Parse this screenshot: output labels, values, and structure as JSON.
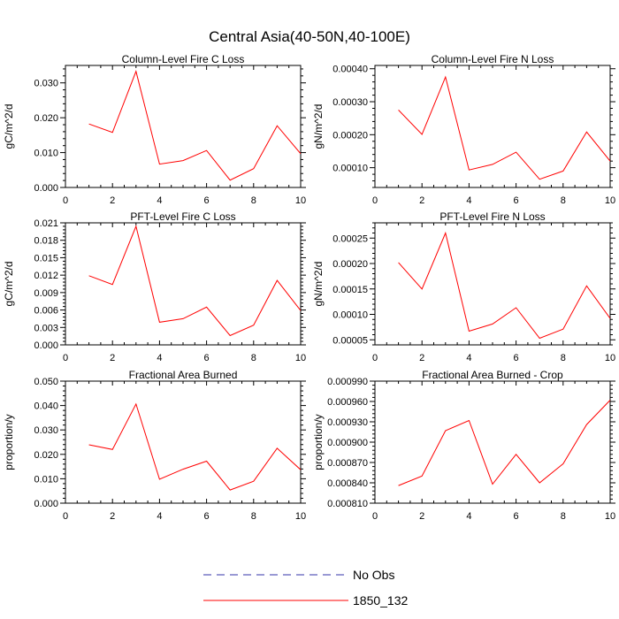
{
  "title": "Central Asia(40-50N,40-100E)",
  "colors": {
    "series": "#ff0000",
    "obs": "#3333aa",
    "frame": "#000000"
  },
  "legend": [
    {
      "label": "No Obs",
      "style": "dashed"
    },
    {
      "label": "1850_132",
      "style": "solid"
    }
  ],
  "chart_data": [
    {
      "type": "line",
      "title": "Column-Level Fire C Loss",
      "ylabel": "gC/m^2/d",
      "xlim": [
        0,
        10
      ],
      "ylim": [
        0.0,
        0.035
      ],
      "xticks": [
        0,
        2,
        4,
        6,
        8,
        10
      ],
      "xtick_labels": [
        "0",
        "2",
        "4",
        "6",
        "8",
        "10"
      ],
      "yticks": [
        0.0,
        0.01,
        0.02,
        0.03
      ],
      "ytick_labels": [
        "0.000",
        "0.010",
        "0.020",
        "0.030"
      ],
      "x": [
        1,
        2,
        3,
        4,
        5,
        6,
        7,
        8,
        9,
        10
      ],
      "series": [
        {
          "name": "1850_132",
          "values": [
            0.0182,
            0.0158,
            0.0333,
            0.0067,
            0.0077,
            0.0106,
            0.0021,
            0.0054,
            0.0177,
            0.0097
          ]
        }
      ]
    },
    {
      "type": "line",
      "title": "Column-Level Fire N Loss",
      "ylabel": "gN/m^2/d",
      "xlim": [
        0,
        10
      ],
      "ylim": [
        4e-05,
        0.00041
      ],
      "xticks": [
        0,
        2,
        4,
        6,
        8,
        10
      ],
      "xtick_labels": [
        "0",
        "2",
        "4",
        "6",
        "8",
        "10"
      ],
      "yticks": [
        0.0001,
        0.0002,
        0.0003,
        0.0004
      ],
      "ytick_labels": [
        "0.00010",
        "0.00020",
        "0.00030",
        "0.00040"
      ],
      "x": [
        1,
        2,
        3,
        4,
        5,
        6,
        7,
        8,
        9,
        10
      ],
      "series": [
        {
          "name": "1850_132",
          "values": [
            0.000275,
            0.000201,
            0.000375,
            9.3e-05,
            0.00011,
            0.000147,
            6.5e-05,
            9e-05,
            0.000208,
            0.00012
          ]
        }
      ]
    },
    {
      "type": "line",
      "title": "PFT-Level Fire C Loss",
      "ylabel": "gC/m^2/d",
      "xlim": [
        0,
        10
      ],
      "ylim": [
        0.0,
        0.021
      ],
      "xticks": [
        0,
        2,
        4,
        6,
        8,
        10
      ],
      "xtick_labels": [
        "0",
        "2",
        "4",
        "6",
        "8",
        "10"
      ],
      "yticks": [
        0.0,
        0.003,
        0.006,
        0.009,
        0.012,
        0.015,
        0.018,
        0.021
      ],
      "ytick_labels": [
        "0.000",
        "0.003",
        "0.006",
        "0.009",
        "0.012",
        "0.015",
        "0.018",
        "0.021"
      ],
      "x": [
        1,
        2,
        3,
        4,
        5,
        6,
        7,
        8,
        9,
        10
      ],
      "series": [
        {
          "name": "1850_132",
          "values": [
            0.0119,
            0.0104,
            0.0204,
            0.0039,
            0.0045,
            0.0065,
            0.0016,
            0.0034,
            0.0111,
            0.0059
          ]
        }
      ]
    },
    {
      "type": "line",
      "title": "PFT-Level Fire N Loss",
      "ylabel": "gN/m^2/d",
      "xlim": [
        0,
        10
      ],
      "ylim": [
        4e-05,
        0.00028
      ],
      "xticks": [
        0,
        2,
        4,
        6,
        8,
        10
      ],
      "xtick_labels": [
        "0",
        "2",
        "4",
        "6",
        "8",
        "10"
      ],
      "yticks": [
        5e-05,
        0.0001,
        0.00015,
        0.0002,
        0.00025
      ],
      "ytick_labels": [
        "0.00005",
        "0.00010",
        "0.00015",
        "0.00020",
        "0.00025"
      ],
      "x": [
        1,
        2,
        3,
        4,
        5,
        6,
        7,
        8,
        9,
        10
      ],
      "series": [
        {
          "name": "1850_132",
          "values": [
            0.000202,
            0.00015,
            0.00026,
            6.7e-05,
            8.1e-05,
            0.000113,
            5.3e-05,
            7.1e-05,
            0.000156,
            9.2e-05
          ]
        }
      ]
    },
    {
      "type": "line",
      "title": "Fractional Area Burned",
      "ylabel": "proportion/y",
      "xlim": [
        0,
        10
      ],
      "ylim": [
        0.0,
        0.05
      ],
      "xticks": [
        0,
        2,
        4,
        6,
        8,
        10
      ],
      "xtick_labels": [
        "0",
        "2",
        "4",
        "6",
        "8",
        "10"
      ],
      "yticks": [
        0.0,
        0.01,
        0.02,
        0.03,
        0.04,
        0.05
      ],
      "ytick_labels": [
        "0.000",
        "0.010",
        "0.020",
        "0.030",
        "0.040",
        "0.050"
      ],
      "x": [
        1,
        2,
        3,
        4,
        5,
        6,
        7,
        8,
        9,
        10
      ],
      "series": [
        {
          "name": "1850_132",
          "values": [
            0.0239,
            0.022,
            0.0406,
            0.0098,
            0.0139,
            0.0172,
            0.0054,
            0.009,
            0.0225,
            0.0137
          ]
        }
      ]
    },
    {
      "type": "line",
      "title": "Fractional Area Burned - Crop",
      "ylabel": "proportion/y",
      "xlim": [
        0,
        10
      ],
      "ylim": [
        0.00081,
        0.00099
      ],
      "xticks": [
        0,
        2,
        4,
        6,
        8,
        10
      ],
      "xtick_labels": [
        "0",
        "2",
        "4",
        "6",
        "8",
        "10"
      ],
      "yticks": [
        0.00081,
        0.00084,
        0.00087,
        0.0009,
        0.00093,
        0.00096,
        0.00099
      ],
      "ytick_labels": [
        "0.000810",
        "0.000840",
        "0.000870",
        "0.000900",
        "0.000930",
        "0.000960",
        "0.000990"
      ],
      "x": [
        1,
        2,
        3,
        4,
        5,
        6,
        7,
        8,
        9,
        10
      ],
      "series": [
        {
          "name": "1850_132",
          "values": [
            0.000836,
            0.00085,
            0.000917,
            0.000932,
            0.000838,
            0.000882,
            0.00084,
            0.000868,
            0.000926,
            0.000962
          ]
        }
      ]
    }
  ]
}
